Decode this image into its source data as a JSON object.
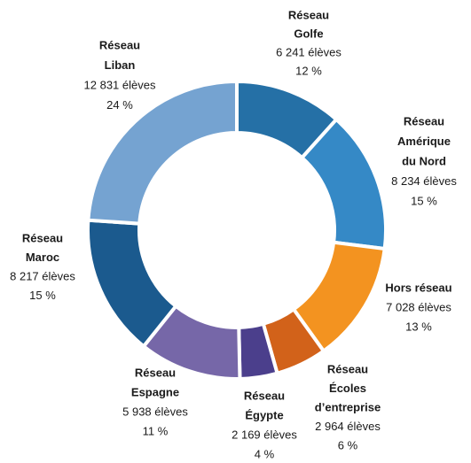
{
  "chart_data": {
    "type": "donut",
    "categories": [
      [
        "Réseau",
        "Golfe"
      ],
      [
        "Réseau",
        "Amérique",
        "du Nord"
      ],
      [
        "Hors réseau"
      ],
      [
        "Réseau",
        "Écoles",
        "d’entreprise"
      ],
      [
        "Réseau",
        "Égypte"
      ],
      [
        "Réseau",
        "Espagne"
      ],
      [
        "Réseau",
        "Maroc"
      ],
      [
        "Réseau",
        "Liban"
      ]
    ],
    "values": [
      6241,
      8234,
      7028,
      2964,
      2169,
      5938,
      8217,
      12831
    ],
    "value_labels": [
      "6 241 élèves",
      "8 234 élèves",
      "7 028 élèves",
      "2 964 élèves",
      "2 169 élèves",
      "5 938 élèves",
      "8 217 élèves",
      "12 831 élèves"
    ],
    "shares": [
      12,
      15,
      13,
      6,
      4,
      11,
      15,
      24
    ],
    "share_labels": [
      "12 %",
      "15 %",
      "13 %",
      "6 %",
      "4 %",
      "11 %",
      "15 %",
      "24 %"
    ],
    "colors": [
      "#2570a6",
      "#3589c6",
      "#f39320",
      "#d2621a",
      "#4b3f8c",
      "#7667a8",
      "#1b5a8e",
      "#75a3d1"
    ]
  }
}
